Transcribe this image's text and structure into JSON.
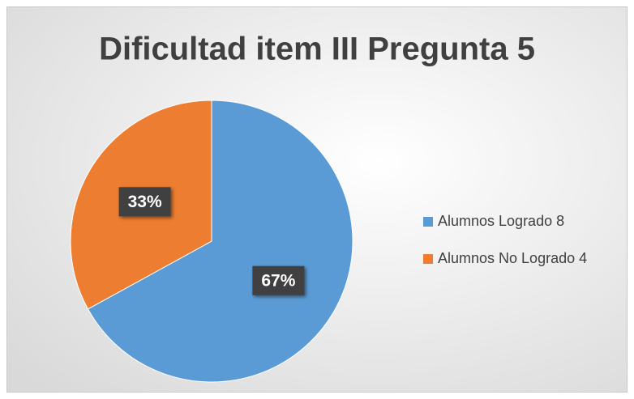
{
  "chart_data": {
    "type": "pie",
    "title": "Dificultad item III Pregunta 5",
    "categories": [
      "Alumnos Logrado 8",
      "Alumnos No Logrado 4"
    ],
    "values": [
      67,
      33
    ],
    "value_labels": [
      "67%",
      "33%"
    ],
    "colors": [
      "#5b9bd5",
      "#ed7d31"
    ],
    "legend": "right"
  }
}
